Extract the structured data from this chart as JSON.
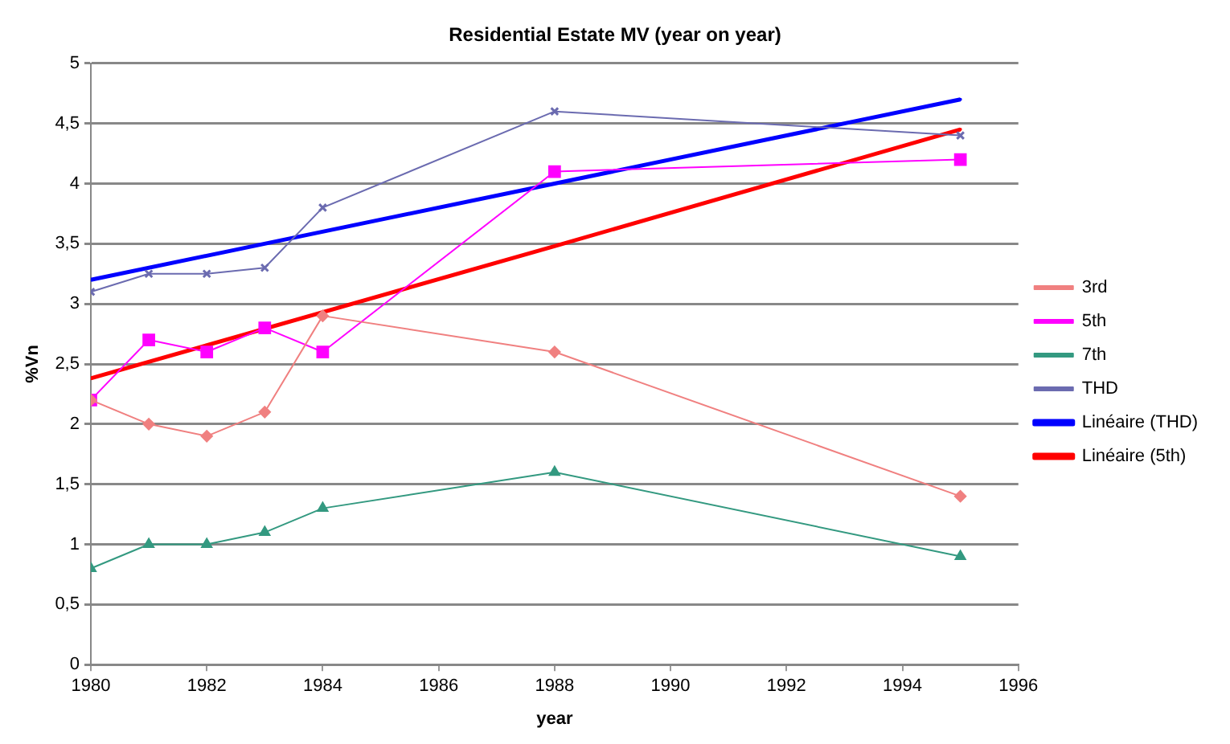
{
  "chart_data": {
    "type": "line",
    "title": "Residential Estate MV (year on year)",
    "xlabel": "year",
    "ylabel": "%Vn",
    "x": [
      1980,
      1981,
      1982,
      1983,
      1984,
      1988,
      1995
    ],
    "series": [
      {
        "name": "3rd",
        "color": "#f08080",
        "marker": "diamond",
        "values": [
          2.2,
          2.0,
          1.9,
          2.1,
          2.9,
          2.6,
          1.4
        ]
      },
      {
        "name": "5th",
        "color": "#ff00ff",
        "marker": "square",
        "values": [
          2.2,
          2.7,
          2.6,
          2.8,
          2.6,
          4.1,
          4.2
        ]
      },
      {
        "name": "7th",
        "color": "#339980",
        "marker": "triangle",
        "values": [
          0.8,
          1.0,
          1.0,
          1.1,
          1.3,
          1.6,
          0.9
        ]
      },
      {
        "name": "THD",
        "color": "#6b6bb0",
        "marker": "cross",
        "values": [
          3.1,
          3.25,
          3.25,
          3.3,
          3.8,
          4.6,
          4.4
        ]
      },
      {
        "name": "Linéaire (THD)",
        "color": "#0000ff",
        "marker": "none",
        "x": [
          1980,
          1988,
          1995
        ],
        "values": [
          3.2,
          4.0,
          4.7
        ]
      },
      {
        "name": "Linéaire (5th)",
        "color": "#ff0000",
        "marker": "none",
        "x": [
          1980,
          1988,
          1995
        ],
        "values": [
          2.38,
          3.48,
          4.45
        ]
      }
    ],
    "xlim": [
      1980,
      1996
    ],
    "xticks": [
      1980,
      1982,
      1984,
      1986,
      1988,
      1990,
      1992,
      1994,
      1996
    ],
    "ylim": [
      0,
      5
    ],
    "yticks": [
      0,
      {
        "value": 0.5,
        "label": "0,5"
      },
      1,
      {
        "value": 1.5,
        "label": "1,5"
      },
      2,
      {
        "value": 2.5,
        "label": "2,5"
      },
      3,
      {
        "value": 3.5,
        "label": "3,5"
      },
      4,
      {
        "value": 4.5,
        "label": "4,5"
      },
      5
    ],
    "grid": "y",
    "legend": "right"
  }
}
